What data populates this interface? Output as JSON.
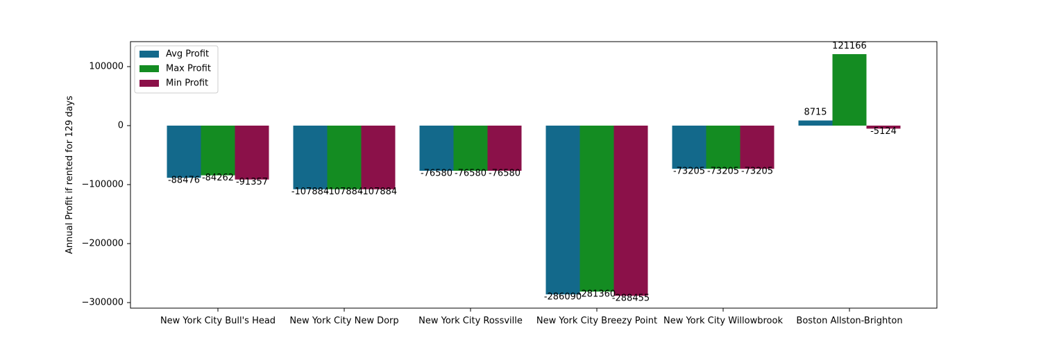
{
  "chart_data": {
    "type": "bar",
    "title": "",
    "xlabel": "",
    "ylabel": "Annual Profit if rented for 129 days",
    "ylim": [
      -310000,
      142000
    ],
    "yticks": [
      -300000,
      -200000,
      -100000,
      0,
      100000
    ],
    "ytick_labels": [
      "−300000",
      "−200000",
      "−100000",
      "0",
      "100000"
    ],
    "grid": false,
    "legend_position": "top-left",
    "categories": [
      "New York City Bull's Head",
      "New York City New Dorp",
      "New York City Rossville",
      "New York City Breezy Point",
      "New York City Willowbrook",
      "Boston Allston-Brighton"
    ],
    "series": [
      {
        "name": "Avg Profit",
        "color": "#13698b",
        "values": [
          -88476,
          -107884,
          -76580,
          -286090,
          -73205,
          8715
        ]
      },
      {
        "name": "Max Profit",
        "color": "#148c22",
        "values": [
          -84262,
          -107884,
          -76580,
          -281360,
          -73205,
          121166
        ]
      },
      {
        "name": "Min Profit",
        "color": "#8b1149",
        "values": [
          -91357,
          -107884,
          -76580,
          -288455,
          -73205,
          -5124
        ]
      }
    ]
  }
}
